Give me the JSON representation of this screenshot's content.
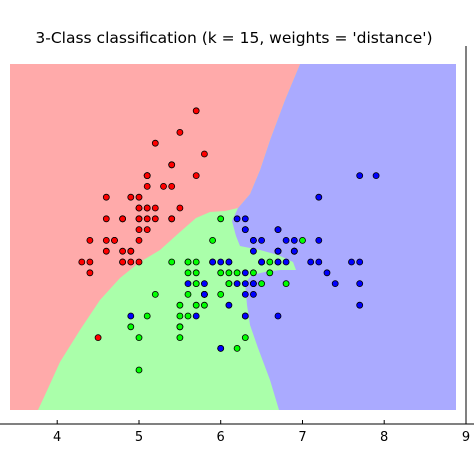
{
  "chart_data": {
    "type": "scatter",
    "title": "3-Class classification (k = 15, weights = 'distance')",
    "xlim": [
      3.3,
      9.0
    ],
    "ylim": [
      1.5,
      5.0
    ],
    "x_ticks": [
      "4",
      "5",
      "6",
      "7",
      "8",
      "9"
    ],
    "grid": false,
    "legend": "none",
    "region_colors": {
      "class_0": "#FFAAAA",
      "class_1": "#AAFFAA",
      "class_2": "#AAAAFF"
    },
    "series": [
      {
        "color": "#FF0000",
        "points": [
          [
            5.1,
            3.5
          ],
          [
            4.9,
            3.0
          ],
          [
            4.7,
            3.2
          ],
          [
            4.6,
            3.1
          ],
          [
            5.0,
            3.6
          ],
          [
            5.4,
            3.9
          ],
          [
            4.6,
            3.4
          ],
          [
            5.0,
            3.4
          ],
          [
            4.4,
            2.9
          ],
          [
            4.9,
            3.1
          ],
          [
            5.4,
            3.7
          ],
          [
            4.8,
            3.4
          ],
          [
            4.8,
            3.0
          ],
          [
            4.3,
            3.0
          ],
          [
            5.8,
            4.0
          ],
          [
            5.7,
            4.4
          ],
          [
            5.4,
            3.9
          ],
          [
            5.1,
            3.5
          ],
          [
            5.7,
            3.8
          ],
          [
            5.1,
            3.8
          ],
          [
            5.4,
            3.4
          ],
          [
            5.1,
            3.7
          ],
          [
            4.6,
            3.6
          ],
          [
            5.1,
            3.3
          ],
          [
            4.8,
            3.4
          ],
          [
            5.0,
            3.0
          ],
          [
            5.0,
            3.4
          ],
          [
            5.2,
            3.5
          ],
          [
            5.2,
            3.4
          ],
          [
            4.7,
            3.2
          ],
          [
            4.8,
            3.1
          ],
          [
            5.4,
            3.4
          ],
          [
            5.2,
            4.1
          ],
          [
            5.5,
            4.2
          ],
          [
            4.9,
            3.1
          ],
          [
            5.0,
            3.2
          ],
          [
            5.5,
            3.5
          ],
          [
            4.9,
            3.6
          ],
          [
            4.4,
            3.0
          ],
          [
            5.1,
            3.4
          ],
          [
            5.0,
            3.5
          ],
          [
            4.5,
            2.3
          ],
          [
            4.4,
            3.2
          ],
          [
            5.0,
            3.5
          ],
          [
            5.1,
            3.8
          ],
          [
            4.8,
            3.0
          ],
          [
            5.1,
            3.8
          ],
          [
            4.6,
            3.2
          ],
          [
            5.3,
            3.7
          ],
          [
            5.0,
            3.3
          ]
        ]
      },
      {
        "color": "#00FF00",
        "points": [
          [
            7.0,
            3.2
          ],
          [
            6.4,
            3.2
          ],
          [
            6.9,
            3.1
          ],
          [
            5.5,
            2.3
          ],
          [
            6.5,
            2.8
          ],
          [
            5.7,
            2.8
          ],
          [
            6.3,
            3.3
          ],
          [
            4.9,
            2.4
          ],
          [
            6.6,
            2.9
          ],
          [
            5.2,
            2.7
          ],
          [
            5.0,
            2.0
          ],
          [
            5.9,
            3.0
          ],
          [
            6.0,
            2.2
          ],
          [
            6.1,
            2.9
          ],
          [
            5.6,
            2.9
          ],
          [
            6.7,
            3.1
          ],
          [
            5.6,
            3.0
          ],
          [
            5.8,
            2.7
          ],
          [
            6.2,
            2.2
          ],
          [
            5.6,
            2.5
          ],
          [
            5.9,
            3.2
          ],
          [
            6.1,
            2.8
          ],
          [
            6.3,
            2.5
          ],
          [
            6.1,
            2.8
          ],
          [
            6.4,
            2.9
          ],
          [
            6.6,
            3.0
          ],
          [
            6.8,
            2.8
          ],
          [
            6.7,
            3.0
          ],
          [
            6.0,
            2.9
          ],
          [
            5.7,
            2.6
          ],
          [
            5.5,
            2.4
          ],
          [
            5.5,
            2.4
          ],
          [
            5.8,
            2.7
          ],
          [
            6.0,
            2.7
          ],
          [
            5.4,
            3.0
          ],
          [
            6.0,
            3.4
          ],
          [
            6.7,
            3.1
          ],
          [
            6.3,
            2.3
          ],
          [
            5.6,
            3.0
          ],
          [
            5.5,
            2.5
          ],
          [
            5.5,
            2.6
          ],
          [
            6.1,
            3.0
          ],
          [
            5.8,
            2.6
          ],
          [
            5.0,
            2.3
          ],
          [
            5.6,
            2.7
          ],
          [
            5.7,
            3.0
          ],
          [
            5.7,
            2.9
          ],
          [
            6.2,
            2.9
          ],
          [
            5.1,
            2.5
          ],
          [
            5.7,
            2.8
          ]
        ]
      },
      {
        "color": "#0000FF",
        "points": [
          [
            6.3,
            3.3
          ],
          [
            5.8,
            2.7
          ],
          [
            7.1,
            3.0
          ],
          [
            6.3,
            2.9
          ],
          [
            6.5,
            3.0
          ],
          [
            7.6,
            3.0
          ],
          [
            4.9,
            2.5
          ],
          [
            7.3,
            2.9
          ],
          [
            6.7,
            2.5
          ],
          [
            7.2,
            3.6
          ],
          [
            6.5,
            3.2
          ],
          [
            6.4,
            2.7
          ],
          [
            6.8,
            3.0
          ],
          [
            5.7,
            2.5
          ],
          [
            5.8,
            2.8
          ],
          [
            6.4,
            3.2
          ],
          [
            6.5,
            3.0
          ],
          [
            7.7,
            3.8
          ],
          [
            7.7,
            2.6
          ],
          [
            6.0,
            2.2
          ],
          [
            6.9,
            3.2
          ],
          [
            5.6,
            2.8
          ],
          [
            7.7,
            2.8
          ],
          [
            6.3,
            2.7
          ],
          [
            6.7,
            3.3
          ],
          [
            7.2,
            3.2
          ],
          [
            6.2,
            2.8
          ],
          [
            6.1,
            3.0
          ],
          [
            6.4,
            2.8
          ],
          [
            7.2,
            3.0
          ],
          [
            7.4,
            2.8
          ],
          [
            7.9,
            3.8
          ],
          [
            6.4,
            2.8
          ],
          [
            6.3,
            2.8
          ],
          [
            6.1,
            2.6
          ],
          [
            7.7,
            3.0
          ],
          [
            6.3,
            3.4
          ],
          [
            6.4,
            3.1
          ],
          [
            6.0,
            3.0
          ],
          [
            6.9,
            3.1
          ],
          [
            6.7,
            3.1
          ],
          [
            6.9,
            3.1
          ],
          [
            5.8,
            2.7
          ],
          [
            6.8,
            3.2
          ],
          [
            6.7,
            3.3
          ],
          [
            6.7,
            3.0
          ],
          [
            6.3,
            2.5
          ],
          [
            6.5,
            3.0
          ],
          [
            6.2,
            3.4
          ],
          [
            5.9,
            3.0
          ]
        ]
      }
    ]
  }
}
